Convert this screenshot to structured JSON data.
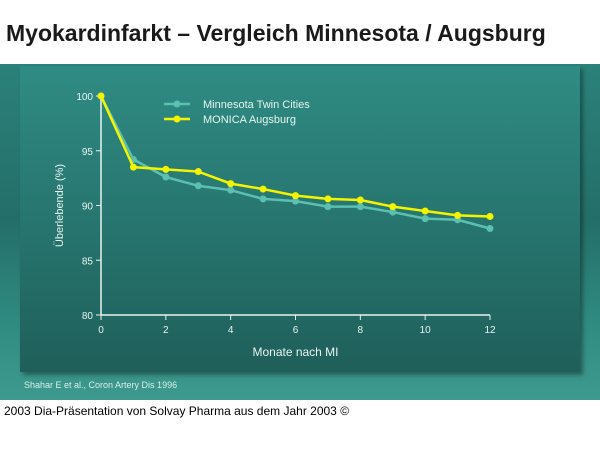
{
  "title": "Myokardinfarkt – Vergleich Minnesota / Augsburg",
  "source": "Shahar E et al., Coron Artery Dis 1996",
  "footer": "2003 Dia-Präsentation von Solvay Pharma aus dem Jahr 2003 ©",
  "chart_data": {
    "type": "line",
    "xlabel": "Monate nach MI",
    "ylabel": "Überlebende (%)",
    "xlim": [
      0,
      12
    ],
    "ylim": [
      80,
      100
    ],
    "xticks": [
      0,
      2,
      4,
      6,
      8,
      10,
      12
    ],
    "yticks": [
      80,
      85,
      90,
      95,
      100
    ],
    "legend_position": "top-left",
    "x": [
      0,
      1,
      2,
      3,
      4,
      5,
      6,
      7,
      8,
      9,
      10,
      11,
      12
    ],
    "series": [
      {
        "name": "Minnesota Twin Cities",
        "color": "#5cc0b0",
        "values": [
          100,
          94.2,
          92.6,
          91.8,
          91.4,
          90.6,
          90.4,
          89.9,
          89.9,
          89.4,
          88.8,
          88.7,
          87.9
        ]
      },
      {
        "name": "MONICA Augsburg",
        "color": "#f4f400",
        "values": [
          100,
          93.5,
          93.3,
          93.1,
          92.0,
          91.5,
          90.9,
          90.6,
          90.5,
          89.9,
          89.5,
          89.1,
          89.0
        ]
      }
    ]
  }
}
